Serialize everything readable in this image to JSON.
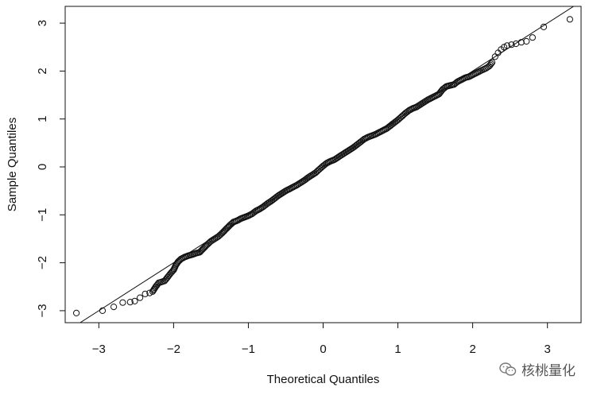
{
  "chart_data": {
    "type": "scatter",
    "xlabel": "Theoretical Quantiles",
    "ylabel": "Sample Quantiles",
    "xlim": [
      -3.45,
      3.45
    ],
    "ylim": [
      -3.25,
      3.35
    ],
    "x_ticks": [
      -3,
      -2,
      -1,
      0,
      1,
      2,
      3
    ],
    "y_ticks": [
      -3,
      -2,
      -1,
      0,
      1,
      2,
      3
    ],
    "reference_line": {
      "intercept": 0.0,
      "slope": 1.0
    },
    "points": [
      [
        -3.3,
        -3.05
      ],
      [
        -2.95,
        -3.0
      ],
      [
        -2.8,
        -2.92
      ],
      [
        -2.68,
        -2.83
      ],
      [
        -2.58,
        -2.82
      ],
      [
        -2.52,
        -2.8
      ],
      [
        -2.45,
        -2.73
      ],
      [
        -2.38,
        -2.65
      ],
      [
        -2.32,
        -2.63
      ],
      [
        -2.28,
        -2.6
      ],
      [
        -2.24,
        -2.5
      ],
      [
        -2.2,
        -2.42
      ],
      [
        -2.16,
        -2.4
      ],
      [
        -2.12,
        -2.38
      ],
      [
        -2.08,
        -2.3
      ],
      [
        -2.04,
        -2.22
      ],
      [
        -2.0,
        -2.15
      ],
      [
        -1.97,
        -2.05
      ],
      [
        -1.94,
        -1.98
      ],
      [
        -1.9,
        -1.92
      ],
      [
        -1.85,
        -1.88
      ],
      [
        -1.8,
        -1.85
      ],
      [
        -1.75,
        -1.83
      ],
      [
        -1.7,
        -1.8
      ],
      [
        -1.65,
        -1.78
      ],
      [
        -1.6,
        -1.7
      ],
      [
        -1.55,
        -1.62
      ],
      [
        -1.5,
        -1.55
      ],
      [
        -1.45,
        -1.5
      ],
      [
        -1.4,
        -1.45
      ],
      [
        -1.35,
        -1.38
      ],
      [
        -1.3,
        -1.3
      ],
      [
        -1.25,
        -1.22
      ],
      [
        -1.2,
        -1.15
      ],
      [
        -1.15,
        -1.12
      ],
      [
        -1.1,
        -1.08
      ],
      [
        -1.05,
        -1.05
      ],
      [
        -1.0,
        -1.02
      ],
      [
        -0.95,
        -0.98
      ],
      [
        -0.9,
        -0.92
      ],
      [
        -0.85,
        -0.88
      ],
      [
        -0.8,
        -0.83
      ],
      [
        -0.75,
        -0.77
      ],
      [
        -0.7,
        -0.72
      ],
      [
        -0.65,
        -0.66
      ],
      [
        -0.6,
        -0.6
      ],
      [
        -0.55,
        -0.55
      ],
      [
        -0.5,
        -0.5
      ],
      [
        -0.45,
        -0.46
      ],
      [
        -0.4,
        -0.42
      ],
      [
        -0.35,
        -0.38
      ],
      [
        -0.3,
        -0.33
      ],
      [
        -0.25,
        -0.28
      ],
      [
        -0.2,
        -0.22
      ],
      [
        -0.15,
        -0.17
      ],
      [
        -0.1,
        -0.12
      ],
      [
        -0.05,
        -0.05
      ],
      [
        0.0,
        0.02
      ],
      [
        0.05,
        0.08
      ],
      [
        0.1,
        0.12
      ],
      [
        0.15,
        0.15
      ],
      [
        0.2,
        0.2
      ],
      [
        0.25,
        0.25
      ],
      [
        0.3,
        0.3
      ],
      [
        0.35,
        0.35
      ],
      [
        0.4,
        0.4
      ],
      [
        0.45,
        0.46
      ],
      [
        0.5,
        0.52
      ],
      [
        0.55,
        0.58
      ],
      [
        0.6,
        0.62
      ],
      [
        0.65,
        0.65
      ],
      [
        0.7,
        0.68
      ],
      [
        0.75,
        0.72
      ],
      [
        0.8,
        0.76
      ],
      [
        0.85,
        0.8
      ],
      [
        0.9,
        0.86
      ],
      [
        0.95,
        0.92
      ],
      [
        1.0,
        0.98
      ],
      [
        1.05,
        1.05
      ],
      [
        1.1,
        1.12
      ],
      [
        1.15,
        1.18
      ],
      [
        1.2,
        1.22
      ],
      [
        1.25,
        1.25
      ],
      [
        1.3,
        1.3
      ],
      [
        1.35,
        1.35
      ],
      [
        1.4,
        1.4
      ],
      [
        1.45,
        1.44
      ],
      [
        1.5,
        1.48
      ],
      [
        1.55,
        1.52
      ],
      [
        1.6,
        1.62
      ],
      [
        1.65,
        1.68
      ],
      [
        1.7,
        1.7
      ],
      [
        1.75,
        1.72
      ],
      [
        1.8,
        1.78
      ],
      [
        1.85,
        1.82
      ],
      [
        1.9,
        1.86
      ],
      [
        1.95,
        1.88
      ],
      [
        2.0,
        1.92
      ],
      [
        2.05,
        1.96
      ],
      [
        2.1,
        2.0
      ],
      [
        2.14,
        2.03
      ],
      [
        2.18,
        2.06
      ],
      [
        2.22,
        2.1
      ],
      [
        2.26,
        2.18
      ],
      [
        2.3,
        2.3
      ],
      [
        2.34,
        2.38
      ],
      [
        2.38,
        2.45
      ],
      [
        2.42,
        2.5
      ],
      [
        2.46,
        2.53
      ],
      [
        2.52,
        2.55
      ],
      [
        2.58,
        2.57
      ],
      [
        2.65,
        2.6
      ],
      [
        2.72,
        2.62
      ],
      [
        2.8,
        2.7
      ],
      [
        2.95,
        2.92
      ],
      [
        3.3,
        3.08
      ]
    ]
  },
  "watermark": {
    "text": "核桃量化",
    "icon": "wechat-icon"
  }
}
